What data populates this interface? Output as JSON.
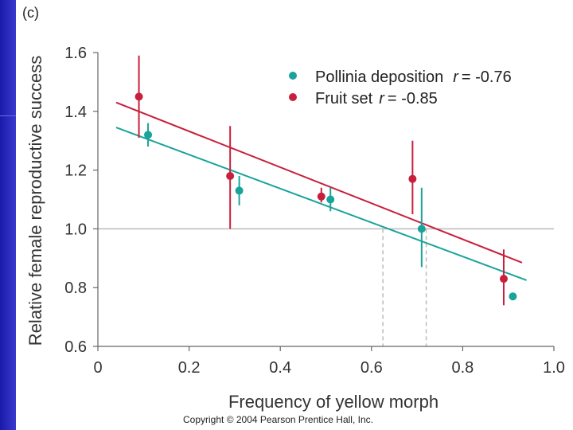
{
  "panel_label": "(c)",
  "copyright": "Copyright © 2004 Pearson Prentice Hall, Inc.",
  "colors": {
    "pollinia": "#1aa39a",
    "fruit": "#c8203c",
    "reference": "#bbbbbb",
    "axis": "#666666"
  },
  "chart_data": {
    "type": "scatter",
    "title": "",
    "xlabel": "Frequency of yellow morph",
    "ylabel": "Relative female reproductive success",
    "xlim": [
      0,
      1.0
    ],
    "ylim": [
      0.6,
      1.6
    ],
    "x_ticks": [
      "0",
      "0.2",
      "0.4",
      "0.6",
      "0.8",
      "1.0"
    ],
    "y_ticks": [
      "0.6",
      "0.8",
      "1.0",
      "1.2",
      "1.4",
      "1.6"
    ],
    "x_tick_values": [
      0,
      0.2,
      0.4,
      0.6,
      0.8,
      1.0
    ],
    "y_tick_values": [
      0.6,
      0.8,
      1.0,
      1.2,
      1.4,
      1.6
    ],
    "reference_line_y": 1.0,
    "crossing_x": [
      0.625,
      0.72
    ],
    "series": [
      {
        "name": "Pollinia deposition",
        "legend_label": "Pollinia deposition",
        "r_label": "r",
        "r_value": "= -0.76",
        "color_key": "pollinia",
        "points": [
          {
            "x": 0.11,
            "y": 1.32,
            "lo": 1.28,
            "hi": 1.36
          },
          {
            "x": 0.31,
            "y": 1.13,
            "lo": 1.08,
            "hi": 1.18
          },
          {
            "x": 0.51,
            "y": 1.1,
            "lo": 1.06,
            "hi": 1.14
          },
          {
            "x": 0.71,
            "y": 1.0,
            "lo": 0.87,
            "hi": 1.14
          },
          {
            "x": 0.91,
            "y": 0.77,
            "lo": 0.77,
            "hi": 0.77
          }
        ],
        "fit": {
          "x1": 0.04,
          "y1": 1.345,
          "x2": 0.94,
          "y2": 0.825
        }
      },
      {
        "name": "Fruit set",
        "legend_label": "Fruit set",
        "r_label": "r",
        "r_value": "= -0.85",
        "color_key": "fruit",
        "points": [
          {
            "x": 0.09,
            "y": 1.45,
            "lo": 1.31,
            "hi": 1.59
          },
          {
            "x": 0.29,
            "y": 1.18,
            "lo": 1.0,
            "hi": 1.35
          },
          {
            "x": 0.49,
            "y": 1.11,
            "lo": 1.09,
            "hi": 1.14
          },
          {
            "x": 0.69,
            "y": 1.17,
            "lo": 1.05,
            "hi": 1.3
          },
          {
            "x": 0.89,
            "y": 0.83,
            "lo": 0.74,
            "hi": 0.93
          }
        ],
        "fit": {
          "x1": 0.04,
          "y1": 1.43,
          "x2": 0.93,
          "y2": 0.885
        }
      }
    ]
  }
}
